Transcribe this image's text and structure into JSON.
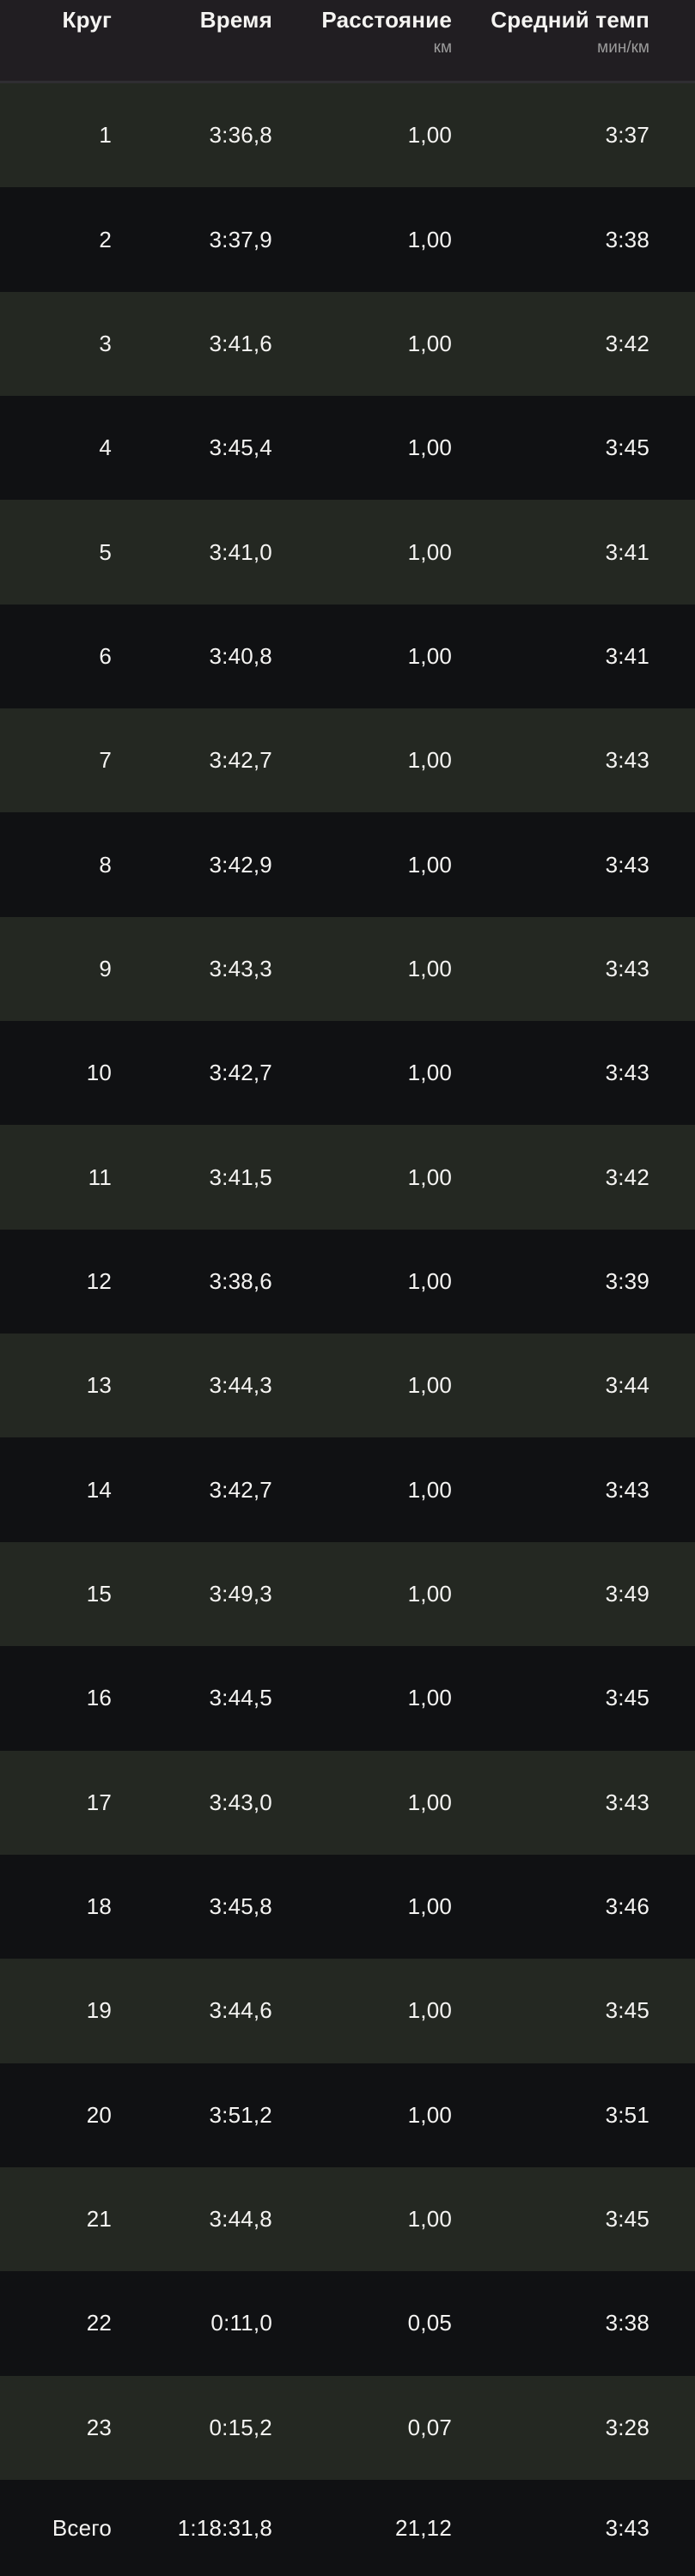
{
  "colors": {
    "bg-dark": "#0e0f11",
    "row-light": "#242822",
    "row-dark": "#101113",
    "header-bg": "#211e22",
    "divider": "#2f2e32",
    "text-primary": "#f5f4f2",
    "text-unit": "#9b9b9b"
  },
  "table": {
    "columns": [
      {
        "label": "Круг",
        "unit": ""
      },
      {
        "label": "Время",
        "unit": ""
      },
      {
        "label": "Расстояние",
        "unit": "км"
      },
      {
        "label": "Средний темп",
        "unit": "мин/км"
      }
    ],
    "rows": [
      {
        "lap": "1",
        "time": "3:36,8",
        "distance": "1,00",
        "pace": "3:37"
      },
      {
        "lap": "2",
        "time": "3:37,9",
        "distance": "1,00",
        "pace": "3:38"
      },
      {
        "lap": "3",
        "time": "3:41,6",
        "distance": "1,00",
        "pace": "3:42"
      },
      {
        "lap": "4",
        "time": "3:45,4",
        "distance": "1,00",
        "pace": "3:45"
      },
      {
        "lap": "5",
        "time": "3:41,0",
        "distance": "1,00",
        "pace": "3:41"
      },
      {
        "lap": "6",
        "time": "3:40,8",
        "distance": "1,00",
        "pace": "3:41"
      },
      {
        "lap": "7",
        "time": "3:42,7",
        "distance": "1,00",
        "pace": "3:43"
      },
      {
        "lap": "8",
        "time": "3:42,9",
        "distance": "1,00",
        "pace": "3:43"
      },
      {
        "lap": "9",
        "time": "3:43,3",
        "distance": "1,00",
        "pace": "3:43"
      },
      {
        "lap": "10",
        "time": "3:42,7",
        "distance": "1,00",
        "pace": "3:43"
      },
      {
        "lap": "11",
        "time": "3:41,5",
        "distance": "1,00",
        "pace": "3:42"
      },
      {
        "lap": "12",
        "time": "3:38,6",
        "distance": "1,00",
        "pace": "3:39"
      },
      {
        "lap": "13",
        "time": "3:44,3",
        "distance": "1,00",
        "pace": "3:44"
      },
      {
        "lap": "14",
        "time": "3:42,7",
        "distance": "1,00",
        "pace": "3:43"
      },
      {
        "lap": "15",
        "time": "3:49,3",
        "distance": "1,00",
        "pace": "3:49"
      },
      {
        "lap": "16",
        "time": "3:44,5",
        "distance": "1,00",
        "pace": "3:45"
      },
      {
        "lap": "17",
        "time": "3:43,0",
        "distance": "1,00",
        "pace": "3:43"
      },
      {
        "lap": "18",
        "time": "3:45,8",
        "distance": "1,00",
        "pace": "3:46"
      },
      {
        "lap": "19",
        "time": "3:44,6",
        "distance": "1,00",
        "pace": "3:45"
      },
      {
        "lap": "20",
        "time": "3:51,2",
        "distance": "1,00",
        "pace": "3:51"
      },
      {
        "lap": "21",
        "time": "3:44,8",
        "distance": "1,00",
        "pace": "3:45"
      },
      {
        "lap": "22",
        "time": "0:11,0",
        "distance": "0,05",
        "pace": "3:38"
      },
      {
        "lap": "23",
        "time": "0:15,2",
        "distance": "0,07",
        "pace": "3:28"
      }
    ],
    "total": {
      "lap": "Всего",
      "time": "1:18:31,8",
      "distance": "21,12",
      "pace": "3:43"
    }
  }
}
